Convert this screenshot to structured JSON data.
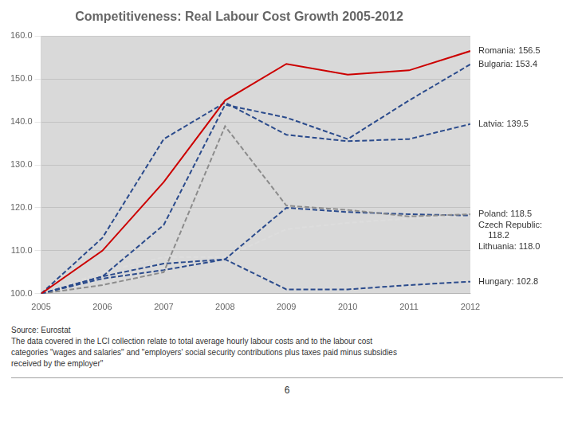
{
  "chart_data": {
    "type": "line",
    "title": "Competitiveness: Real Labour Cost Growth 2005-2012",
    "x": [
      2005,
      2006,
      2007,
      2008,
      2009,
      2010,
      2011,
      2012
    ],
    "series": [
      {
        "name": "Romania: 156.5",
        "color": "#CC0000",
        "line_style": "solid",
        "values": [
          100.0,
          110.0,
          126.0,
          145.0,
          153.5,
          151.0,
          152.0,
          156.5
        ]
      },
      {
        "name": "Bulgaria: 153.4",
        "color": "#2B4B8C",
        "line_style": "dashed",
        "values": [
          100.0,
          104.0,
          116.0,
          144.0,
          141.0,
          136.0,
          145.0,
          153.4
        ]
      },
      {
        "name": "Latvia: 139.5",
        "color": "#2B4B8C",
        "line_style": "dashed",
        "values": [
          100.0,
          113.0,
          136.0,
          144.5,
          137.0,
          135.5,
          136.0,
          139.5
        ]
      },
      {
        "name": "Poland: 118.5",
        "color": "#8C8C8C",
        "line_style": "dashed",
        "values": [
          100.0,
          102.0,
          105.0,
          139.0,
          120.5,
          119.5,
          118.0,
          118.5
        ]
      },
      {
        "name": "Czech Republic:\n    118.2",
        "color": "#2B4B8C",
        "line_style": "dashed",
        "values": [
          100.0,
          104.0,
          107.0,
          108.0,
          120.0,
          119.0,
          118.5,
          118.2
        ]
      },
      {
        "name": "Lithuania: 118.0",
        "color": "#DDDDDD",
        "line_style": "dashed",
        "values": [
          100.0,
          105.0,
          108.5,
          108.5,
          115.0,
          116.5,
          117.5,
          118.0
        ]
      },
      {
        "name": "Hungary: 102.8",
        "color": "#2B4B8C",
        "line_style": "dashed",
        "values": [
          100.0,
          103.5,
          105.5,
          108.0,
          101.0,
          101.0,
          102.0,
          102.8
        ]
      }
    ],
    "xlim": [
      2005,
      2012
    ],
    "xticks": [
      2005,
      2006,
      2007,
      2008,
      2009,
      2010,
      2011,
      2012
    ],
    "ylim": [
      100.0,
      160.0
    ],
    "yticks": [
      {
        "value": 100.0,
        "label": "100.0"
      },
      {
        "value": 110.0,
        "label": "110.0"
      },
      {
        "value": 120.0,
        "label": "120.0"
      },
      {
        "value": 130.0,
        "label": "130.0"
      },
      {
        "value": 140.0,
        "label": "140.0"
      },
      {
        "value": 150.0,
        "label": "150.0"
      },
      {
        "value": 160.0,
        "label": "160.0"
      }
    ],
    "grid": "y",
    "annotations": [
      "Source: Eurostat\nThe data covered in the LCI collection relate to total average hourly labour costs and to the labour cost\ncategories \"wages and salaries\" and \"employers' social security contributions plus taxes paid minus subsidies\nreceived by the employer\"",
      "6"
    ]
  }
}
